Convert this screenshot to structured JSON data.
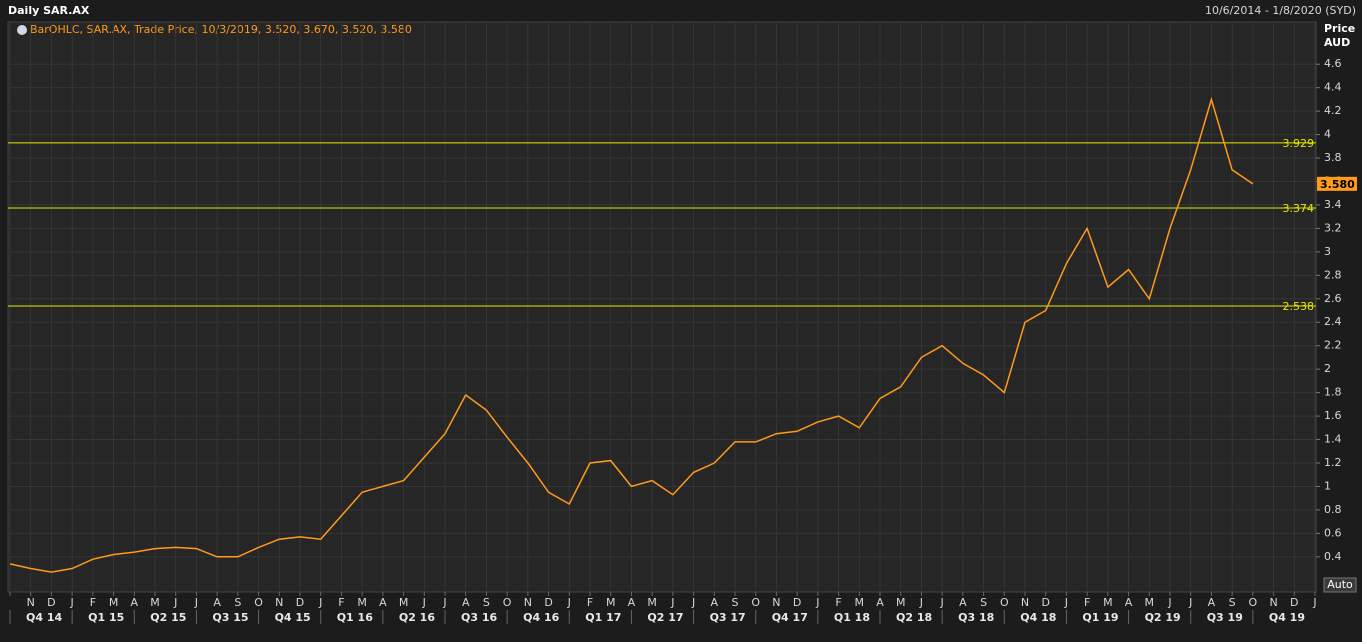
{
  "chart_data": {
    "type": "line",
    "title": "Daily SAR.AX",
    "subtitle": "10/6/2014 - 1/8/2020 (SYD)",
    "legend": "BarOHLC, SAR.AX, Trade Price, 10/3/2019, 3.520, 3.670, 3.520, 3.580",
    "y_label": "Price",
    "y_unit": "AUD",
    "button": "Auto",
    "categories": [
      null,
      "N",
      "D",
      "J",
      "F",
      "M",
      "A",
      "M",
      "J",
      "J",
      "A",
      "S",
      "O",
      "N",
      "D",
      "J",
      "F",
      "M",
      "A",
      "M",
      "J",
      "J",
      "A",
      "S",
      "O",
      "N",
      "D",
      "J",
      "F",
      "M",
      "A",
      "M",
      "J",
      "J",
      "A",
      "S",
      "O",
      "N",
      "D",
      "J",
      "F",
      "M",
      "A",
      "M",
      "J",
      "J",
      "A",
      "S",
      "O",
      "N",
      "D",
      "J",
      "F",
      "M",
      "A",
      "M",
      "J",
      "J",
      "A",
      "S",
      "O",
      "N",
      "D",
      "J"
    ],
    "quarters": [
      "Q4 14",
      "Q1 15",
      "Q2 15",
      "Q3 15",
      "Q4 15",
      "Q1 16",
      "Q2 16",
      "Q3 16",
      "Q4 16",
      "Q1 17",
      "Q2 17",
      "Q3 17",
      "Q4 17",
      "Q1 18",
      "Q2 18",
      "Q3 18",
      "Q4 18",
      "Q1 19",
      "Q2 19",
      "Q3 19",
      "Q4 19"
    ],
    "series": [
      {
        "color": "#ff9a1a",
        "values": [
          0.34,
          0.3,
          0.27,
          0.3,
          0.38,
          0.42,
          0.44,
          0.47,
          0.48,
          0.47,
          0.4,
          0.4,
          0.48,
          0.55,
          0.57,
          0.55,
          0.75,
          0.95,
          1.0,
          1.05,
          1.25,
          1.45,
          1.78,
          1.65,
          1.42,
          1.2,
          0.95,
          0.85,
          1.2,
          1.22,
          1.0,
          1.05,
          0.93,
          1.12,
          1.2,
          1.38,
          1.38,
          1.45,
          1.47,
          1.55,
          1.6,
          1.5,
          1.75,
          1.85,
          2.1,
          2.2,
          2.05,
          1.95,
          1.8,
          2.4,
          2.5,
          2.9,
          3.2,
          2.7,
          2.85,
          2.6,
          3.2,
          3.7,
          4.3,
          3.7,
          3.58,
          null,
          null,
          null
        ]
      }
    ],
    "levels": [
      3.929,
      3.374,
      2.538
    ],
    "level_color": "#e6e600",
    "last": {
      "value": 3.58,
      "label": "3.580"
    },
    "ylim": [
      0.1,
      4.96
    ],
    "yticks": [
      0.4,
      0.6,
      0.8,
      1,
      1.2,
      1.4,
      1.6,
      1.8,
      2,
      2.2,
      2.4,
      2.6,
      2.8,
      3,
      3.2,
      3.4,
      3.6,
      3.8,
      4,
      4.2,
      4.4,
      4.6
    ],
    "grid": true
  }
}
